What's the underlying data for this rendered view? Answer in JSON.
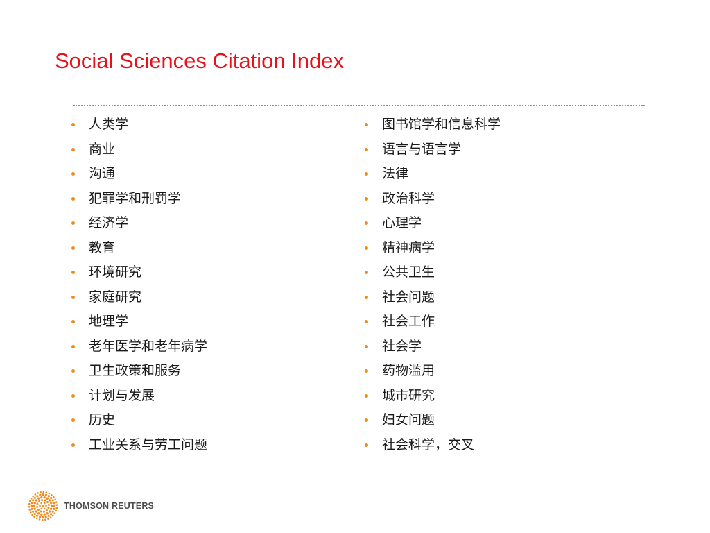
{
  "slide": {
    "title": "Social Sciences Citation Index",
    "title_color": "#e8111a",
    "bullet_color": "#f08a1c"
  },
  "categories": {
    "left": [
      "人类学",
      "商业",
      "沟通",
      "犯罪学和刑罚学",
      "经济学",
      "教育",
      "环境研究",
      "家庭研究",
      "地理学",
      "老年医学和老年病学",
      "卫生政策和服务",
      "计划与发展",
      "历史",
      "工业关系与劳工问题"
    ],
    "right": [
      "图书馆学和信息科学",
      "语言与语言学",
      "法律",
      "政治科学",
      "心理学",
      "精神病学",
      "公共卫生",
      "社会问题",
      "社会工作",
      "社会学",
      "药物滥用",
      "城市研究",
      "妇女问题",
      "社会科学，交叉"
    ]
  },
  "footer": {
    "logo_text": "THOMSON REUTERS",
    "logo_icon": "thomson-reuters-dot-sphere-icon",
    "logo_color": "#f08a1c"
  }
}
